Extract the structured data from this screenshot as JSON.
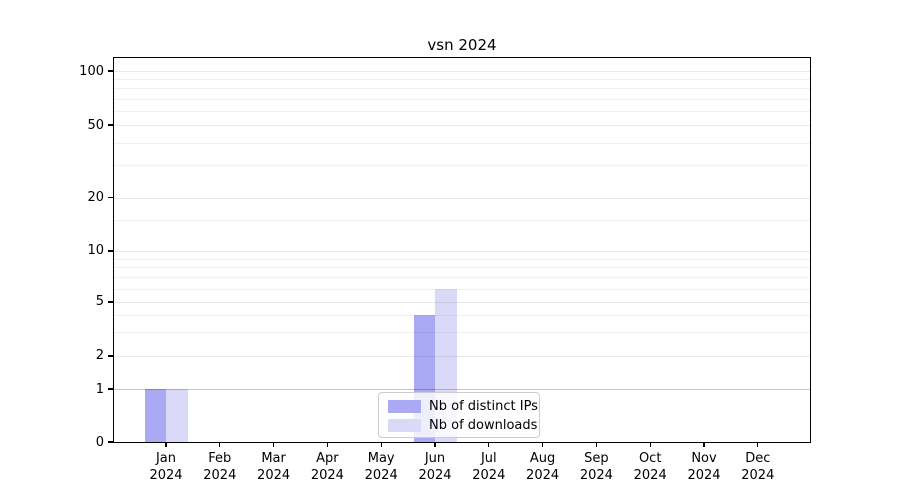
{
  "title": "vsn 2024",
  "chart_data": {
    "type": "bar",
    "title": "vsn 2024",
    "categories": [
      "Jan",
      "Feb",
      "Mar",
      "Apr",
      "May",
      "Jun",
      "Jul",
      "Aug",
      "Sep",
      "Oct",
      "Nov",
      "Dec"
    ],
    "category_year": "2024",
    "series": [
      {
        "name": "Nb of distinct IPs",
        "color": "#a9a9f4",
        "values": [
          1,
          0,
          0,
          0,
          0,
          4,
          0,
          0,
          0,
          0,
          0,
          0
        ]
      },
      {
        "name": "Nb of downloads",
        "color": "#dadaf8",
        "values": [
          1,
          0,
          0,
          0,
          0,
          6,
          0,
          0,
          0,
          0,
          0,
          0
        ]
      }
    ],
    "y_axis": {
      "ticks": [
        0,
        1,
        2,
        5,
        10,
        20,
        50,
        100
      ],
      "minor_gridlines": [
        3,
        4,
        6,
        7,
        8,
        9,
        15,
        30,
        40,
        60,
        70,
        80,
        90
      ],
      "scale": "log-above-1-linear-below",
      "ylim": [
        0,
        115
      ],
      "anchors": [
        {
          "v": 1,
          "f": 0.862
        },
        {
          "v": 2,
          "f": 0.776
        },
        {
          "v": 5,
          "f": 0.6354
        },
        {
          "v": 10,
          "f": 0.5026
        },
        {
          "v": 20,
          "f": 0.3633
        },
        {
          "v": 50,
          "f": 0.1745
        },
        {
          "v": 100,
          "f": 0.0339
        }
      ],
      "zero_frac": 1.0
    },
    "x_axis": {
      "label": "",
      "tick_year_line": "2024"
    },
    "grid": true,
    "legend_position": "lower center"
  },
  "legend": {
    "items": [
      {
        "label": "Nb of distinct IPs",
        "color": "#a9a9f4"
      },
      {
        "label": "Nb of downloads",
        "color": "#dadaf8"
      }
    ]
  },
  "colors": {
    "background": "#ffffff",
    "axis": "#000000",
    "text": "#000000",
    "bar_distinct_ips": "#a9a9f4",
    "bar_downloads": "#dadaf8",
    "legend_border": "#cccccc",
    "gridline_unit": "#c6c6c6",
    "gridline_minor": "#f1f1f1"
  }
}
